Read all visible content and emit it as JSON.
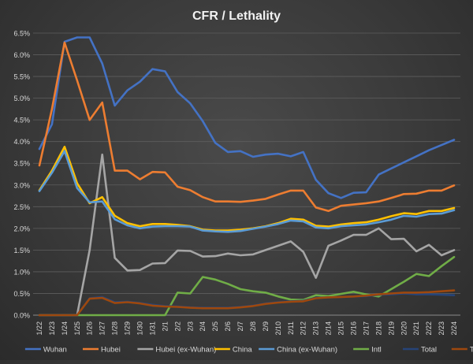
{
  "chart_data": {
    "type": "line",
    "title": "CFR / Lethality",
    "xlabel": "",
    "ylabel": "",
    "ylim": [
      0,
      6.5
    ],
    "yticks": [
      "0.0%",
      "0.5%",
      "1.0%",
      "1.5%",
      "2.0%",
      "2.5%",
      "3.0%",
      "3.5%",
      "4.0%",
      "4.5%",
      "5.0%",
      "5.5%",
      "6.0%",
      "6.5%"
    ],
    "grid": true,
    "legend": "bottom",
    "x": [
      "1/22",
      "1/23",
      "1/24",
      "1/25",
      "1/26",
      "1/27",
      "1/28",
      "1/29",
      "1/30",
      "1/31",
      "2/1",
      "2/2",
      "2/3",
      "2/4",
      "2/5",
      "2/6",
      "2/7",
      "2/8",
      "2/9",
      "2/10",
      "2/11",
      "2/12",
      "2/13",
      "2/14",
      "2/15",
      "2/16",
      "2/17",
      "2/18",
      "2/19",
      "2/20",
      "2/21",
      "2/22",
      "2/23",
      "2/24"
    ],
    "series": [
      {
        "name": "Wuhan",
        "color": "#4472c4",
        "values": [
          3.83,
          4.4,
          6.3,
          6.4,
          6.4,
          5.8,
          4.83,
          5.18,
          5.38,
          5.67,
          5.62,
          5.14,
          4.88,
          4.47,
          3.97,
          3.76,
          3.78,
          3.65,
          3.7,
          3.72,
          3.66,
          3.76,
          3.12,
          2.81,
          2.7,
          2.82,
          2.83,
          3.24,
          3.38,
          3.52,
          3.66,
          3.8,
          3.92,
          4.04
        ]
      },
      {
        "name": "Hubei",
        "color": "#ed7d31",
        "values": [
          3.45,
          4.75,
          6.28,
          5.41,
          4.5,
          4.9,
          3.33,
          3.33,
          3.13,
          3.3,
          3.29,
          2.96,
          2.88,
          2.72,
          2.62,
          2.62,
          2.61,
          2.64,
          2.68,
          2.78,
          2.87,
          2.87,
          2.48,
          2.4,
          2.52,
          2.55,
          2.58,
          2.62,
          2.7,
          2.79,
          2.8,
          2.87,
          2.87,
          2.99
        ]
      },
      {
        "name": "Hubei (ex-Wuhan)",
        "color": "#a5a5a5",
        "values": [
          0,
          0,
          0,
          0,
          1.5,
          3.7,
          1.32,
          1.03,
          1.04,
          1.19,
          1.2,
          1.49,
          1.48,
          1.35,
          1.36,
          1.42,
          1.38,
          1.4,
          1.5,
          1.6,
          1.7,
          1.46,
          0.86,
          1.6,
          1.72,
          1.85,
          1.85,
          2.0,
          1.75,
          1.76,
          1.47,
          1.62,
          1.38,
          1.5
        ]
      },
      {
        "name": "China",
        "color": "#ffc000",
        "values": [
          2.88,
          3.33,
          3.88,
          3.04,
          2.58,
          2.72,
          2.29,
          2.12,
          2.05,
          2.1,
          2.1,
          2.08,
          2.05,
          1.97,
          1.95,
          1.95,
          1.97,
          2.0,
          2.05,
          2.12,
          2.22,
          2.2,
          2.06,
          2.04,
          2.09,
          2.12,
          2.14,
          2.2,
          2.28,
          2.35,
          2.33,
          2.4,
          2.4,
          2.47
        ]
      },
      {
        "name": "China (ex-Wuhan)",
        "color": "#5b9bd5",
        "values": [
          2.86,
          3.28,
          3.78,
          2.93,
          2.6,
          2.62,
          2.21,
          2.07,
          2.0,
          2.04,
          2.05,
          2.05,
          2.04,
          1.95,
          1.93,
          1.92,
          1.94,
          1.99,
          2.04,
          2.1,
          2.18,
          2.16,
          2.02,
          2.0,
          2.05,
          2.07,
          2.09,
          2.14,
          2.2,
          2.29,
          2.27,
          2.33,
          2.34,
          2.42
        ]
      },
      {
        "name": "Intl",
        "color": "#70ad47",
        "values": [
          0,
          0,
          0,
          0,
          0,
          0,
          0,
          0,
          0,
          0,
          0,
          0.52,
          0.5,
          0.88,
          0.82,
          0.72,
          0.6,
          0.55,
          0.52,
          0.43,
          0.36,
          0.35,
          0.46,
          0.44,
          0.49,
          0.54,
          0.48,
          0.43,
          0.6,
          0.77,
          0.95,
          0.9,
          1.13,
          1.34
        ]
      },
      {
        "name": "Total",
        "color": "#264478",
        "values": [
          0,
          0,
          0,
          0,
          0.39,
          0.42,
          0.3,
          0.31,
          0.28,
          0.24,
          0.21,
          0.2,
          0.18,
          0.17,
          0.17,
          0.17,
          0.19,
          0.22,
          0.27,
          0.3,
          0.32,
          0.33,
          0.4,
          0.41,
          0.42,
          0.43,
          0.44,
          0.47,
          0.48,
          0.5,
          0.48,
          0.48,
          0.47,
          0.46
        ]
      },
      {
        "name": "Total (ex-Hubei)",
        "color": "#9e480e",
        "values": [
          0,
          0,
          0,
          0,
          0.38,
          0.4,
          0.28,
          0.3,
          0.27,
          0.22,
          0.2,
          0.19,
          0.17,
          0.16,
          0.16,
          0.16,
          0.18,
          0.21,
          0.26,
          0.29,
          0.31,
          0.32,
          0.39,
          0.41,
          0.42,
          0.43,
          0.45,
          0.48,
          0.5,
          0.52,
          0.52,
          0.53,
          0.55,
          0.57
        ]
      }
    ]
  }
}
